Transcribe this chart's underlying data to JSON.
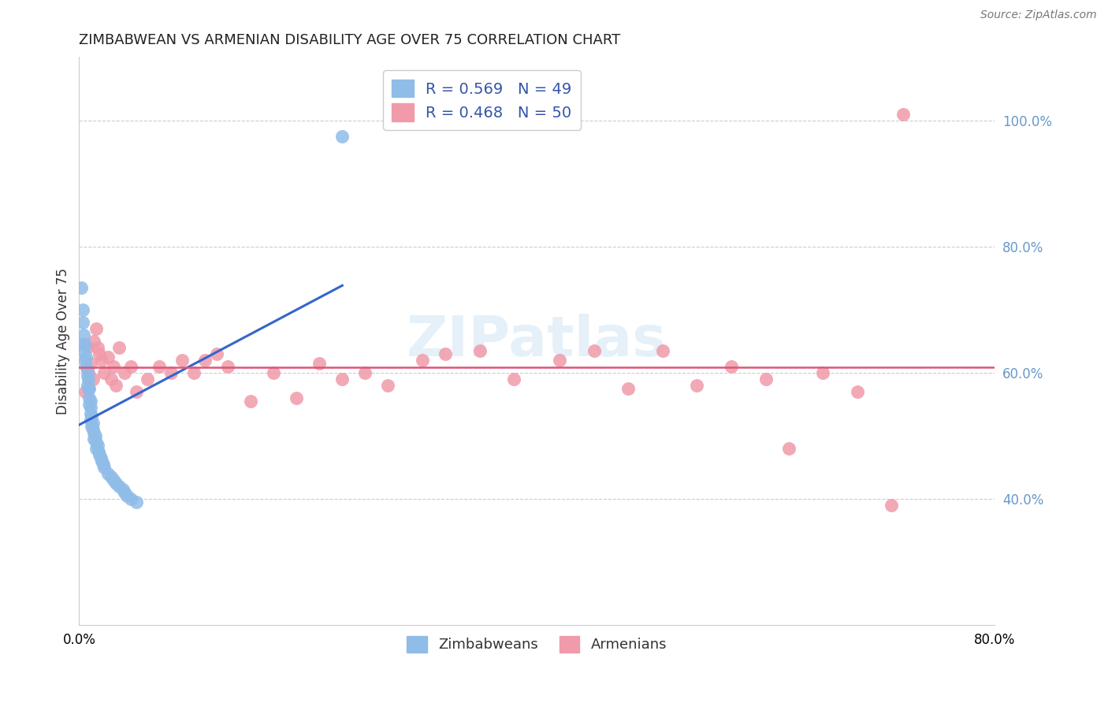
{
  "title": "ZIMBABWEAN VS ARMENIAN DISABILITY AGE OVER 75 CORRELATION CHART",
  "source": "Source: ZipAtlas.com",
  "ylabel": "Disability Age Over 75",
  "xlim": [
    0.0,
    0.8
  ],
  "ylim": [
    0.2,
    1.1
  ],
  "ytick_right_positions": [
    0.4,
    0.6,
    0.8,
    1.0
  ],
  "ytick_right_labels": [
    "40.0%",
    "60.0%",
    "80.0%",
    "100.0%"
  ],
  "watermark_text": "ZIPatlas",
  "legend_r1": "R = 0.569   N = 49",
  "legend_r2": "R = 0.468   N = 50",
  "zimbabwean_color": "#90bce8",
  "armenian_color": "#f09aaa",
  "blue_line_color": "#3366cc",
  "pink_line_color": "#dd5577",
  "background_color": "#ffffff",
  "grid_color": "#cccccc",
  "right_tick_color": "#6699cc",
  "zim_x": [
    0.002,
    0.003,
    0.003,
    0.003,
    0.004,
    0.004,
    0.005,
    0.005,
    0.006,
    0.006,
    0.007,
    0.007,
    0.007,
    0.008,
    0.008,
    0.009,
    0.009,
    0.009,
    0.01,
    0.01,
    0.01,
    0.01,
    0.011,
    0.011,
    0.012,
    0.012,
    0.013,
    0.013,
    0.014,
    0.015,
    0.015,
    0.016,
    0.017,
    0.018,
    0.019,
    0.02,
    0.021,
    0.022,
    0.025,
    0.028,
    0.03,
    0.032,
    0.035,
    0.038,
    0.04,
    0.042,
    0.045,
    0.05,
    0.23
  ],
  "zim_y": [
    0.735,
    0.7,
    0.68,
    0.645,
    0.66,
    0.635,
    0.645,
    0.62,
    0.625,
    0.61,
    0.605,
    0.595,
    0.58,
    0.59,
    0.575,
    0.575,
    0.56,
    0.55,
    0.555,
    0.545,
    0.535,
    0.525,
    0.53,
    0.515,
    0.52,
    0.51,
    0.505,
    0.495,
    0.5,
    0.49,
    0.48,
    0.485,
    0.475,
    0.47,
    0.465,
    0.46,
    0.455,
    0.45,
    0.44,
    0.435,
    0.43,
    0.425,
    0.42,
    0.415,
    0.41,
    0.405,
    0.4,
    0.395,
    0.975
  ],
  "arm_x": [
    0.005,
    0.007,
    0.008,
    0.01,
    0.012,
    0.013,
    0.015,
    0.016,
    0.018,
    0.02,
    0.022,
    0.025,
    0.028,
    0.03,
    0.032,
    0.035,
    0.04,
    0.045,
    0.05,
    0.06,
    0.07,
    0.08,
    0.09,
    0.1,
    0.11,
    0.12,
    0.13,
    0.15,
    0.17,
    0.19,
    0.21,
    0.23,
    0.25,
    0.27,
    0.3,
    0.32,
    0.35,
    0.38,
    0.42,
    0.45,
    0.48,
    0.51,
    0.54,
    0.57,
    0.6,
    0.62,
    0.65,
    0.68,
    0.71,
    0.72
  ],
  "arm_y": [
    0.57,
    0.64,
    0.6,
    0.615,
    0.59,
    0.65,
    0.67,
    0.64,
    0.63,
    0.62,
    0.6,
    0.625,
    0.59,
    0.61,
    0.58,
    0.64,
    0.6,
    0.61,
    0.57,
    0.59,
    0.61,
    0.6,
    0.62,
    0.6,
    0.62,
    0.63,
    0.61,
    0.555,
    0.6,
    0.56,
    0.615,
    0.59,
    0.6,
    0.58,
    0.62,
    0.63,
    0.635,
    0.59,
    0.62,
    0.635,
    0.575,
    0.635,
    0.58,
    0.61,
    0.59,
    0.48,
    0.6,
    0.57,
    0.39,
    1.01
  ],
  "zim_line_x0": 0.0,
  "zim_line_x1": 0.23,
  "arm_line_x0": 0.0,
  "arm_line_x1": 0.8
}
